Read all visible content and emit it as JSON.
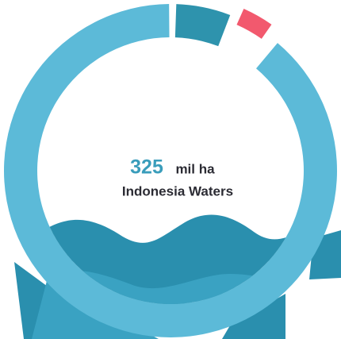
{
  "stat": {
    "value": "325",
    "unit": "mil ha",
    "label": "Indonesia Waters"
  }
}
